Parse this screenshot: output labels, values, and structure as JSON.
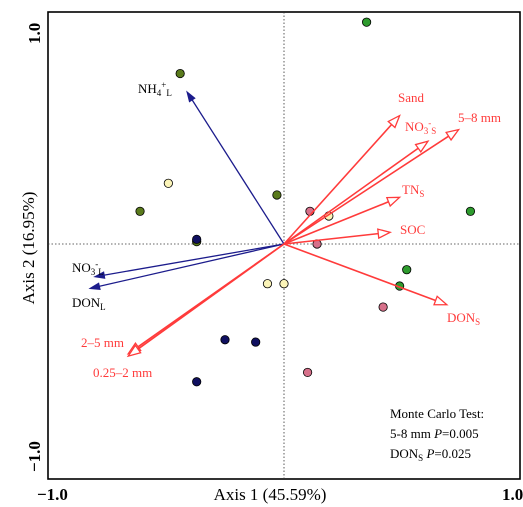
{
  "chart_data": {
    "type": "scatter",
    "subtype": "RDA biplot",
    "xlabel": "Axis 1 (45.59%)",
    "ylabel": "Axis 2 (16.95%)",
    "xlim": [
      -1.0,
      1.0
    ],
    "ylim": [
      -1.0,
      1.0
    ],
    "x_ticks": [
      "−1.0",
      "1.0"
    ],
    "y_ticks": [
      "1.0",
      "−1.0"
    ],
    "zero_lines": "dotted",
    "grid": false,
    "colors": {
      "response_vector": "#1c1c8c",
      "explanatory_vector": "#ff3b3b",
      "frame": "#000000"
    },
    "response_vectors": [
      {
        "label": "NH4+L",
        "x": -0.41,
        "y": 0.65
      },
      {
        "label": "NO3-L",
        "x": -0.8,
        "y": -0.14
      },
      {
        "label": "DONL",
        "x": -0.82,
        "y": -0.19
      }
    ],
    "explanatory_vectors": [
      {
        "label": "Sand",
        "x": 0.49,
        "y": 0.55
      },
      {
        "label": "NO3-S",
        "x": 0.61,
        "y": 0.44
      },
      {
        "label": "5–8 mm",
        "x": 0.74,
        "y": 0.49
      },
      {
        "label": "TNS",
        "x": 0.49,
        "y": 0.2
      },
      {
        "label": "SOC",
        "x": 0.45,
        "y": 0.05
      },
      {
        "label": "DONS",
        "x": 0.69,
        "y": -0.26
      },
      {
        "label": "2–5 mm",
        "x": -0.66,
        "y": -0.47
      },
      {
        "label": "0.25–2 mm",
        "x": -0.66,
        "y": -0.48
      }
    ],
    "series": [
      {
        "color": "#2e9b2e",
        "points": [
          [
            0.35,
            0.95
          ],
          [
            0.79,
            0.14
          ],
          [
            0.52,
            -0.11
          ],
          [
            0.49,
            -0.18
          ]
        ]
      },
      {
        "color": "#5a7a1c",
        "points": [
          [
            -0.44,
            0.73
          ],
          [
            -0.61,
            0.14
          ],
          [
            -0.37,
            0.01
          ],
          [
            -0.03,
            0.21
          ]
        ]
      },
      {
        "color": "#fbf4b8",
        "points": [
          [
            -0.49,
            0.26
          ],
          [
            0.19,
            0.12
          ],
          [
            -0.07,
            -0.17
          ],
          [
            0.0,
            -0.17
          ]
        ]
      },
      {
        "color": "#d6708a",
        "points": [
          [
            0.11,
            0.14
          ],
          [
            0.14,
            0.0
          ],
          [
            0.42,
            -0.27
          ],
          [
            0.1,
            -0.55
          ]
        ]
      },
      {
        "color": "#101060",
        "points": [
          [
            -0.37,
            0.02
          ],
          [
            -0.25,
            -0.41
          ],
          [
            -0.12,
            -0.42
          ],
          [
            -0.37,
            -0.59
          ]
        ]
      }
    ],
    "annotation": {
      "title": "Monte Carlo Test:",
      "line1_label": "5-8 mm",
      "line1_p": "P",
      "line1_value": "=0.005",
      "line2_label": "DONS",
      "line2_p": "P",
      "line2_value": "=0.025"
    }
  }
}
